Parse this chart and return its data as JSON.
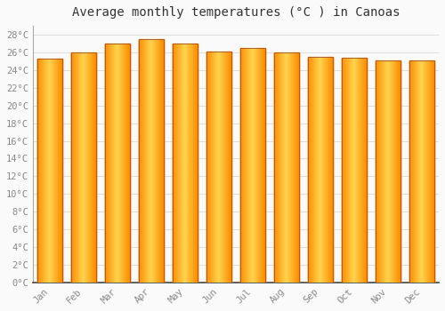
{
  "title": "Average monthly temperatures (°C ) in Canoas",
  "months": [
    "Jan",
    "Feb",
    "Mar",
    "Apr",
    "May",
    "Jun",
    "Jul",
    "Aug",
    "Sep",
    "Oct",
    "Nov",
    "Dec"
  ],
  "values": [
    25.3,
    26.0,
    27.0,
    27.5,
    27.0,
    26.1,
    26.5,
    26.0,
    25.5,
    25.4,
    25.1,
    25.1
  ],
  "bar_color_center": "#FFD54F",
  "bar_color_edge": "#FB8C00",
  "bar_border_color": "#A0522D",
  "ylim": [
    0,
    29
  ],
  "ytick_step": 2,
  "background_color": "#FAFAFA",
  "grid_color": "#DDDDDD",
  "title_fontsize": 10,
  "tick_fontsize": 7.5,
  "tick_label_color": "#888888",
  "font_family": "monospace",
  "bar_width": 0.75
}
